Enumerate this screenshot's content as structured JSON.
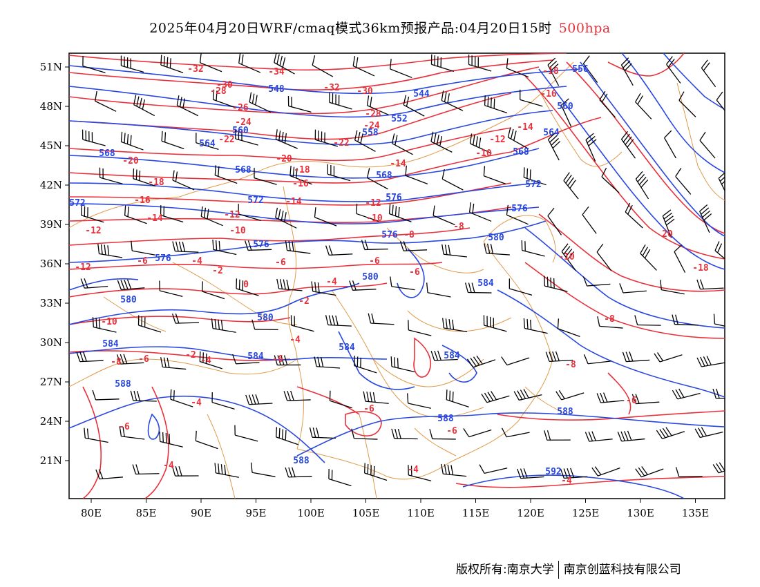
{
  "title": {
    "main": "2025年04月20日WRF/cmaq模式36km预报产品:04月20日15时",
    "level": "500hpa",
    "level_color": "#e8303a"
  },
  "axes": {
    "x_ticks": [
      "80E",
      "85E",
      "90E",
      "95E",
      "100E",
      "105E",
      "110E",
      "115E",
      "120E",
      "125E",
      "130E",
      "135E"
    ],
    "y_ticks": [
      "51N",
      "48N",
      "45N",
      "42N",
      "39N",
      "36N",
      "33N",
      "30N",
      "27N",
      "24N",
      "21N"
    ]
  },
  "layers": {
    "height_contour_color": "#2846e0",
    "temperature_contour_color": "#e8303a",
    "border_color": "#e09a4a",
    "wind_barb_color": "#000000"
  },
  "contour_labels": {
    "height": [
      "548",
      "544",
      "552",
      "556",
      "560",
      "564",
      "568",
      "572",
      "576",
      "580",
      "584",
      "588",
      "592"
    ],
    "temperature": [
      "-32",
      "-30",
      "-28",
      "-26",
      "-24",
      "-22",
      "-20",
      "-18",
      "-16",
      "-14",
      "-12",
      "-10",
      "-8",
      "-6",
      "-4",
      "-2",
      "0",
      "10",
      "20"
    ]
  },
  "footer": {
    "copyright": "版权所有:南京大学",
    "partner": "南京创蓝科技有限公司"
  }
}
